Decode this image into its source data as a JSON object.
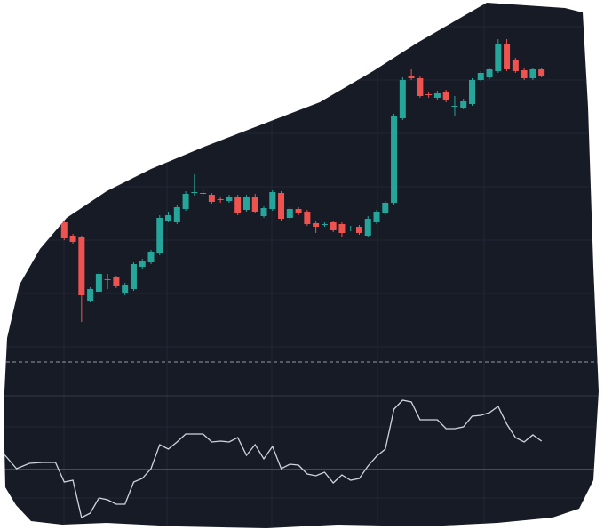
{
  "chart_data": [
    {
      "type": "candlestick",
      "x": [
        0,
        1,
        2,
        3,
        4,
        5,
        6,
        7,
        8,
        9,
        10,
        11,
        12,
        13,
        14,
        15,
        16,
        17,
        18,
        19,
        20,
        21,
        22,
        23,
        24,
        25,
        26,
        27,
        28,
        29,
        30,
        31,
        32,
        33,
        34,
        35,
        36,
        37,
        38,
        39,
        40,
        41,
        42,
        43,
        44,
        45,
        46,
        47,
        48,
        49,
        50,
        51,
        52,
        53,
        54,
        55
      ],
      "open": [
        250,
        235,
        233,
        162,
        172,
        185,
        189,
        170,
        175,
        200,
        205,
        215,
        252,
        250,
        265,
        283,
        283,
        281,
        276,
        274,
        279,
        264,
        279,
        257,
        265,
        283,
        255,
        265,
        262,
        249,
        247,
        250,
        248,
        242,
        245,
        235,
        250,
        260,
        272,
        367,
        415,
        412,
        394,
        390,
        397,
        380,
        379,
        383,
        410,
        413,
        420,
        450,
        433,
        421,
        412,
        422
      ],
      "high": [
        252,
        237,
        235,
        177,
        194,
        192,
        190,
        182,
        205,
        209,
        219,
        258,
        262,
        269,
        285,
        304,
        287,
        283,
        278,
        281,
        281,
        281,
        282,
        268,
        286,
        285,
        267,
        267,
        264,
        251,
        250,
        252,
        250,
        246,
        247,
        257,
        264,
        274,
        372,
        413,
        422,
        414,
        397,
        398,
        399,
        392,
        389,
        412,
        420,
        424,
        456,
        456,
        435,
        423,
        424,
        424
      ],
      "low": [
        230,
        226,
        138,
        160,
        170,
        175,
        176,
        168,
        173,
        198,
        203,
        213,
        250,
        248,
        263,
        280,
        278,
        271,
        272,
        272,
        258,
        262,
        260,
        255,
        263,
        252,
        253,
        258,
        246,
        238,
        245,
        239,
        233,
        240,
        236,
        233,
        248,
        258,
        270,
        365,
        410,
        390,
        390,
        388,
        385,
        370,
        377,
        381,
        408,
        411,
        418,
        420,
        418,
        410,
        410,
        413
      ],
      "close": [
        232,
        228,
        168,
        175,
        192,
        186,
        178,
        180,
        203,
        207,
        217,
        255,
        258,
        267,
        282,
        284,
        282,
        273,
        275,
        279,
        260,
        279,
        262,
        266,
        284,
        254,
        265,
        260,
        248,
        245,
        248,
        241,
        238,
        243,
        238,
        254,
        262,
        272,
        369,
        410,
        412,
        392,
        393,
        395,
        387,
        381,
        386,
        410,
        418,
        422,
        450,
        422,
        420,
        412,
        422,
        415
      ],
      "up_color": "#26a69a",
      "down_color": "#ef5350",
      "xlim": [
        -7.4,
        62.2
      ],
      "ylim": [
        55,
        500
      ],
      "price_line": 93
    },
    {
      "type": "line",
      "x": [
        -7,
        -5.5,
        -4,
        -2.5,
        -1,
        0,
        1,
        2,
        3,
        4,
        5,
        6,
        7,
        8,
        9,
        10,
        11,
        12,
        13,
        14,
        15,
        16,
        17,
        18,
        19,
        20,
        21,
        22,
        23,
        24,
        25,
        26,
        27,
        28,
        29,
        30,
        31,
        32,
        33,
        34,
        35,
        36,
        37,
        38,
        39,
        40,
        41,
        42,
        43,
        44,
        45,
        46,
        47,
        48,
        49,
        50,
        51,
        52,
        53,
        54,
        55
      ],
      "values": [
        86,
        69,
        75,
        76,
        76,
        54,
        56,
        14,
        19,
        36,
        34,
        29,
        29,
        54,
        58,
        69,
        96,
        91,
        99,
        108,
        108,
        108,
        99,
        100,
        99,
        104,
        84,
        96,
        80,
        94,
        69,
        74,
        73,
        63,
        61,
        65,
        53,
        62,
        56,
        58,
        72,
        83,
        91,
        136,
        146,
        144,
        124,
        124,
        124,
        114,
        114,
        116,
        128,
        129,
        132,
        139,
        119,
        104,
        99,
        107,
        100
      ],
      "color": "#d1d4dc",
      "xlim": [
        -7.4,
        62.2
      ],
      "ylim": [
        0,
        151
      ],
      "hline": 68
    }
  ]
}
